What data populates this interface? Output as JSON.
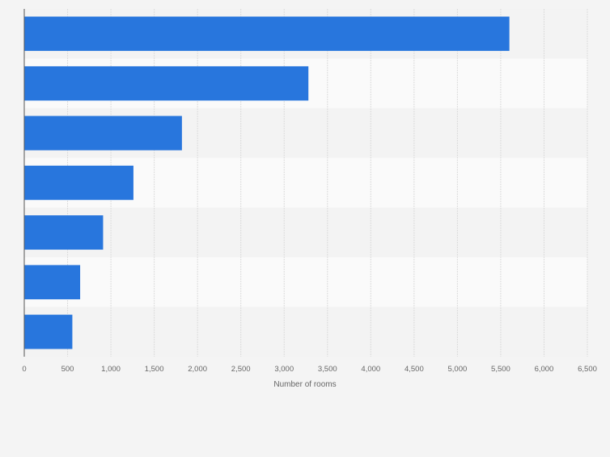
{
  "chart_data": {
    "type": "bar",
    "orientation": "horizontal",
    "categories": [
      "",
      "",
      "",
      "",
      "",
      "",
      ""
    ],
    "values": [
      5600,
      3280,
      1820,
      1260,
      910,
      645,
      555
    ],
    "xlabel": "Number of rooms",
    "ylabel": "",
    "xlim": [
      0,
      6500
    ],
    "xticks": [
      0,
      500,
      1000,
      1500,
      2000,
      2500,
      3000,
      3500,
      4000,
      4500,
      5000,
      5500,
      6000,
      6500
    ],
    "xtick_labels": [
      "0",
      "500",
      "1,000",
      "1,500",
      "2,000",
      "2,500",
      "3,000",
      "3,500",
      "4,000",
      "4,500",
      "5,000",
      "5,500",
      "6,000",
      "6,500"
    ],
    "grid": true,
    "bar_color": "#2876dd",
    "band_colors": [
      "#f3f3f3",
      "#fafafa"
    ]
  }
}
